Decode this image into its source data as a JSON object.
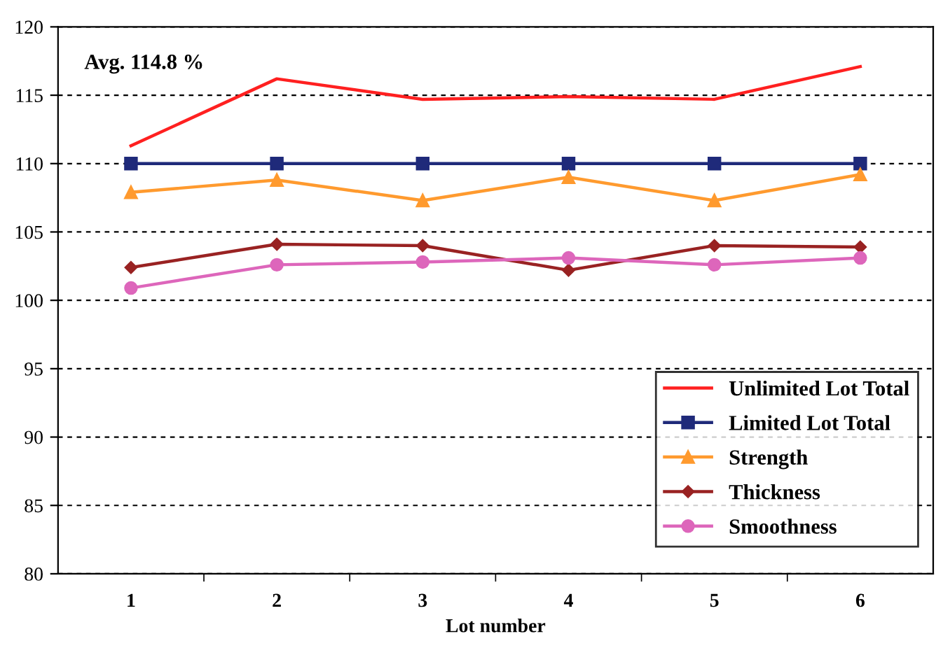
{
  "chart_data": {
    "type": "line",
    "xlabel": "Lot number",
    "categories": [
      "1",
      "2",
      "3",
      "4",
      "5",
      "6"
    ],
    "series": [
      {
        "name": "Unlimited Lot Total",
        "color": "#ff2020",
        "marker": "none",
        "values": [
          111.3,
          116.2,
          114.7,
          114.9,
          114.7,
          117.1
        ]
      },
      {
        "name": "Limited Lot Total",
        "color": "#1f2a7a",
        "marker": "square",
        "values": [
          110,
          110,
          110,
          110,
          110,
          110
        ]
      },
      {
        "name": "Strength",
        "color": "#ff9a2e",
        "marker": "triangle",
        "values": [
          107.9,
          108.8,
          107.3,
          109.0,
          107.3,
          109.2
        ]
      },
      {
        "name": "Thickness",
        "color": "#992222",
        "marker": "diamond",
        "values": [
          102.4,
          104.1,
          104.0,
          102.2,
          104.0,
          103.9
        ]
      },
      {
        "name": "Smoothness",
        "color": "#dd66bb",
        "marker": "circle",
        "values": [
          100.9,
          102.6,
          102.8,
          103.1,
          102.6,
          103.1
        ]
      }
    ],
    "ylim": [
      80,
      120
    ],
    "yticks": [
      80,
      85,
      90,
      95,
      100,
      105,
      110,
      115,
      120
    ],
    "grid": "y",
    "legend": "bottom right",
    "line_style": "solid",
    "annotations": [
      "Avg. 114.8 %"
    ]
  }
}
